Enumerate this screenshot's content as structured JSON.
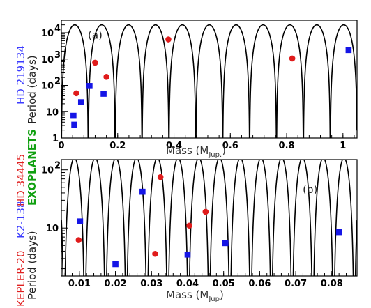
{
  "chart_data": [
    {
      "type": "scatter",
      "panel_label": "(a)",
      "xlabel": "Mass",
      "xlabel_unit": "(M",
      "xlabel_sub": "Jup.",
      "xlabel_close": ")",
      "ylabel": "Period (days)",
      "series_labels": [
        {
          "name": "HD 219134",
          "color": "#3b3bff"
        },
        {
          "name": "HD 34445",
          "color": "#e02020"
        }
      ],
      "xlim": [
        0,
        1.05
      ],
      "ylim": [
        1,
        30000
      ],
      "yscale": "log",
      "x_ticks": [
        "0",
        "0.2",
        "0.4",
        "0.6",
        "0.8",
        "1"
      ],
      "x_tick_values": [
        0,
        0.2,
        0.4,
        0.6,
        0.8,
        1.0
      ],
      "y_ticks": [
        {
          "base": "1",
          "exp": "",
          "value": 1
        },
        {
          "base": "10",
          "exp": "",
          "value": 10
        },
        {
          "base": "10",
          "exp": "2",
          "value": 100
        },
        {
          "base": "10",
          "exp": "3",
          "value": 1000
        },
        {
          "base": "10",
          "exp": "4",
          "value": 10000
        }
      ],
      "curve": {
        "color": "#000000",
        "period_base": 20000,
        "mass_step": 0.0955
      },
      "series": [
        {
          "marker": "circle",
          "color": "#e01b1b",
          "points": [
            [
              0.053,
              50
            ],
            [
              0.1,
              95
            ],
            [
              0.12,
              730
            ],
            [
              0.16,
              210
            ],
            [
              0.38,
              5600
            ],
            [
              0.82,
              1050
            ]
          ]
        },
        {
          "marker": "square",
          "color": "#1515e6",
          "points": [
            [
              0.043,
              7
            ],
            [
              0.046,
              3.2
            ],
            [
              0.07,
              23
            ],
            [
              0.1,
              95
            ],
            [
              0.15,
              48
            ],
            [
              1.02,
              2200
            ]
          ]
        }
      ]
    },
    {
      "type": "scatter",
      "panel_label": "(b)",
      "xlabel": "Mass",
      "xlabel_unit": "(M",
      "xlabel_sub": "Jup",
      "xlabel_close": ")",
      "ylabel": "Period (days)",
      "series_labels": [
        {
          "name": "KEPLER-20",
          "color": "#e02020"
        },
        {
          "name": "K2-138",
          "color": "#3b3bff"
        },
        {
          "name": "EXOPLANETS",
          "color": "#10a010"
        }
      ],
      "xlim": [
        0.005,
        0.087
      ],
      "ylim": [
        1.5,
        150
      ],
      "yscale": "log",
      "x_ticks": [
        "0.01",
        "0.02",
        "0.03",
        "0.04",
        "0.05",
        "0.06",
        "0.07",
        "0.08"
      ],
      "x_tick_values": [
        0.01,
        0.02,
        0.03,
        0.04,
        0.05,
        0.06,
        0.07,
        0.08
      ],
      "y_ticks": [
        {
          "base": "10",
          "exp": "",
          "value": 10
        },
        {
          "base": "10",
          "exp": "2",
          "value": 100
        }
      ],
      "curve": {
        "color": "#000000",
        "period_base": 160,
        "mass_step": 0.00575
      },
      "series": [
        {
          "marker": "circle",
          "color": "#e01b1b",
          "points": [
            [
              0.0098,
              6.2
            ],
            [
              0.031,
              3.6
            ],
            [
              0.0325,
              75
            ],
            [
              0.0405,
              11
            ],
            [
              0.045,
              19
            ]
          ]
        },
        {
          "marker": "square",
          "color": "#1515e6",
          "points": [
            [
              0.0102,
              13
            ],
            [
              0.02,
              2.4
            ],
            [
              0.0275,
              42
            ],
            [
              0.04,
              3.5
            ],
            [
              0.0505,
              5.5
            ],
            [
              0.082,
              8.5
            ]
          ]
        }
      ]
    }
  ]
}
